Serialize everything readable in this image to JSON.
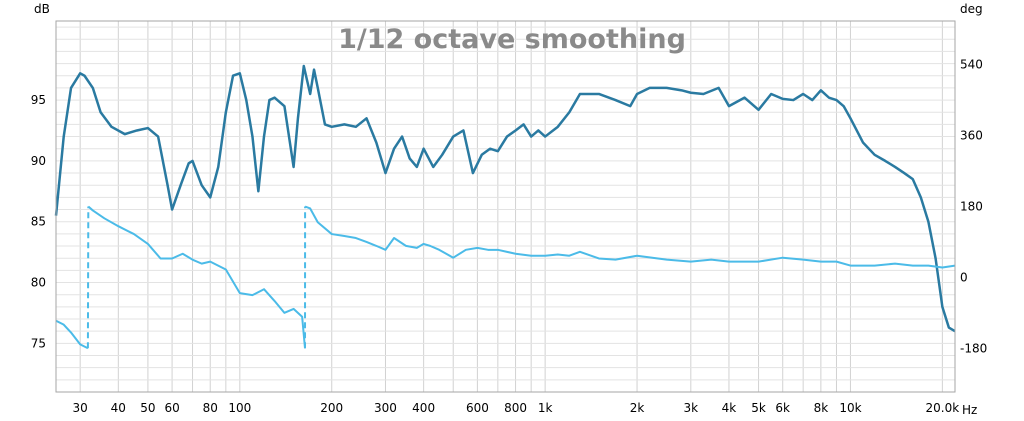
{
  "chart_data": {
    "type": "line",
    "title": "1/12 octave smoothing",
    "left_unit": "dB",
    "right_unit": "deg",
    "x_unit": "Hz",
    "x_scale": "log",
    "xlim": [
      25,
      22000
    ],
    "ylim": [
      71.0,
      101.5
    ],
    "y2lim": [
      -291,
      651
    ],
    "grid": true,
    "x_ticks": [
      {
        "v": 30,
        "label": "30"
      },
      {
        "v": 40,
        "label": "40"
      },
      {
        "v": 50,
        "label": "50"
      },
      {
        "v": 60,
        "label": "60"
      },
      {
        "v": 80,
        "label": "80"
      },
      {
        "v": 100,
        "label": "100"
      },
      {
        "v": 200,
        "label": "200"
      },
      {
        "v": 300,
        "label": "300"
      },
      {
        "v": 400,
        "label": "400"
      },
      {
        "v": 600,
        "label": "600"
      },
      {
        "v": 800,
        "label": "800"
      },
      {
        "v": 1000,
        "label": "1k"
      },
      {
        "v": 2000,
        "label": "2k"
      },
      {
        "v": 3000,
        "label": "3k"
      },
      {
        "v": 4000,
        "label": "4k"
      },
      {
        "v": 5000,
        "label": "5k"
      },
      {
        "v": 6000,
        "label": "6k"
      },
      {
        "v": 8000,
        "label": "8k"
      },
      {
        "v": 10000,
        "label": "10k"
      },
      {
        "v": 20000,
        "label": "20.0k"
      }
    ],
    "y_ticks": [
      75,
      80,
      85,
      90,
      95
    ],
    "y2_ticks": [
      {
        "v": -180,
        "label": "-180"
      },
      {
        "v": 0,
        "label": "0"
      },
      {
        "v": 180,
        "label": "180"
      },
      {
        "v": 360,
        "label": "360"
      },
      {
        "v": 540,
        "label": "540"
      }
    ],
    "series": [
      {
        "axis": "left",
        "color": "#2a7aa1",
        "x": [
          25,
          26.5,
          28,
          30,
          31,
          33,
          35,
          38,
          42,
          46,
          50,
          54,
          58,
          60,
          64,
          68,
          70,
          75,
          80,
          85,
          90,
          95,
          100,
          105,
          110,
          115,
          120,
          125,
          130,
          140,
          150,
          155,
          162,
          170,
          175,
          180,
          190,
          200,
          220,
          240,
          260,
          280,
          300,
          320,
          340,
          360,
          380,
          400,
          430,
          460,
          500,
          540,
          580,
          620,
          660,
          700,
          750,
          800,
          850,
          900,
          950,
          1000,
          1100,
          1200,
          1300,
          1500,
          1700,
          1900,
          2000,
          2200,
          2500,
          2800,
          3000,
          3300,
          3700,
          4000,
          4500,
          5000,
          5500,
          6000,
          6500,
          7000,
          7500,
          8000,
          8500,
          9000,
          9500,
          10000,
          11000,
          12000,
          13000,
          14000,
          15000,
          16000,
          17000,
          18000,
          19000,
          20000,
          21000,
          22000
        ],
        "y": [
          85.5,
          92,
          96,
          97.2,
          97,
          96,
          94,
          92.8,
          92.2,
          92.5,
          92.7,
          92,
          88,
          86,
          88,
          89.8,
          90,
          88,
          87,
          89.5,
          94,
          97,
          97.2,
          95,
          92,
          87.5,
          92,
          95,
          95.2,
          94.5,
          89.5,
          93.5,
          97.8,
          95.5,
          97.5,
          96,
          93,
          92.8,
          93,
          92.8,
          93.5,
          91.5,
          89,
          91,
          92,
          90.2,
          89.5,
          91,
          89.5,
          90.5,
          92,
          92.5,
          89,
          90.5,
          91,
          90.8,
          92,
          92.5,
          93,
          92,
          92.5,
          92,
          92.8,
          94,
          95.5,
          95.5,
          95,
          94.5,
          95.5,
          96,
          96,
          95.8,
          95.6,
          95.5,
          96,
          94.5,
          95.2,
          94.2,
          95.5,
          95.1,
          95,
          95.5,
          95,
          95.8,
          95.2,
          95,
          94.5,
          93.5,
          91.5,
          90.5,
          90,
          89.5,
          89,
          88.5,
          87,
          85,
          82,
          78,
          76.3,
          76
        ]
      },
      {
        "axis": "right",
        "color": "#4bbbe8",
        "x": [
          25,
          26.5,
          28,
          30,
          31.8,
          31.9,
          33,
          36,
          40,
          45,
          50,
          55,
          60,
          65,
          70,
          75,
          80,
          90,
          100,
          110,
          120,
          130,
          140,
          150,
          160,
          163.5,
          163.6,
          170,
          180,
          200,
          220,
          240,
          260,
          280,
          300,
          320,
          350,
          380,
          400,
          420,
          450,
          500,
          550,
          600,
          650,
          700,
          800,
          900,
          1000,
          1100,
          1200,
          1300,
          1500,
          1700,
          2000,
          2500,
          3000,
          3500,
          4000,
          5000,
          6000,
          7000,
          8000,
          9000,
          10000,
          12000,
          14000,
          16000,
          18000,
          20000,
          22000
        ],
        "y": [
          -110,
          -120,
          -140,
          -170,
          -180,
          180,
          170,
          150,
          130,
          110,
          85,
          48,
          48,
          60,
          45,
          35,
          40,
          20,
          -40,
          -45,
          -30,
          -60,
          -90,
          -80,
          -100,
          -180,
          180,
          175,
          140,
          110,
          105,
          100,
          90,
          80,
          70,
          100,
          80,
          75,
          85,
          80,
          70,
          50,
          70,
          75,
          70,
          70,
          60,
          55,
          55,
          58,
          55,
          65,
          48,
          45,
          55,
          45,
          40,
          45,
          40,
          40,
          50,
          45,
          40,
          40,
          30,
          30,
          35,
          30,
          30,
          25,
          30
        ]
      }
    ]
  }
}
